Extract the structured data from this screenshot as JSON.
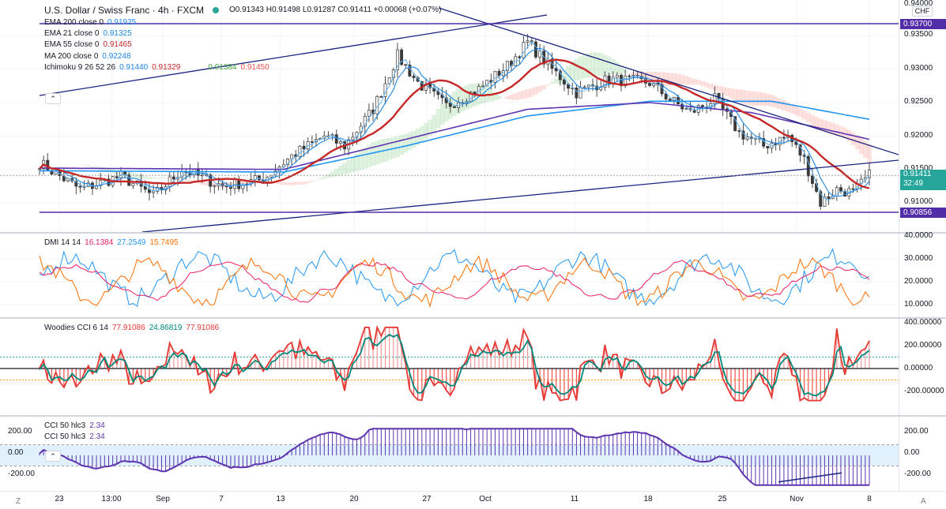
{
  "header": {
    "symbol": "U.S. Dollar / Swiss Franc · 4h · FXCM",
    "ohlc": "O0.91343  H0.91498  L0.91287  C0.91411  +0.00068 (+0.07%)",
    "currency": "CHF"
  },
  "main_legend": [
    {
      "label": "EMA 200 close 0",
      "value": "0.91925",
      "color": "#1e88e5"
    },
    {
      "label": "EMA 21 close 0",
      "value": "0.91325",
      "color": "#1e88e5"
    },
    {
      "label": "EMA 55 close 0",
      "value": "0.91465",
      "color": "#c62828"
    },
    {
      "label": "MA 200 close 0",
      "value": "0.92248",
      "color": "#1e88e5"
    }
  ],
  "ichimoku": {
    "label": "Ichimoku 9 26 52 26",
    "v1": "0.91440",
    "v2": "0.91329",
    "v3": "0.91384",
    "v4": "0.91450"
  },
  "dmi": {
    "label": "DMI 14 14",
    "v1": "16.1384",
    "v2": "27.2549",
    "v3": "15.7495"
  },
  "cci_w": {
    "label": "Woodies CCI 6 14",
    "v1": "77.91086",
    "v2": "24.86819",
    "v3": "77.91086"
  },
  "cci50": {
    "label1": "CCI 50 hlc3",
    "v1": "2.34",
    "label2": "CCI 50 hlc3",
    "v2": "2.34"
  },
  "price_axis": {
    "ticks": [
      "0.94000",
      "0.93500",
      "0.93000",
      "0.92500",
      "0.92000",
      "0.91500",
      "0.91000"
    ],
    "tag_top": "0.93700",
    "tag_last": "0.91411",
    "tag_countdown": "32:49",
    "tag_bottom": "0.90856"
  },
  "dmi_axis": [
    "40.0000",
    "30.0000",
    "20.0000",
    "10.0000"
  ],
  "cciw_axis": [
    "400.00000",
    "200.00000",
    "0.00000",
    "-200.00000"
  ],
  "cci50_axis_right": [
    "200.00",
    "0.00",
    "-200.00"
  ],
  "cci50_axis_left": [
    "200.00",
    "0.00",
    "-200.00"
  ],
  "x_labels": [
    "23",
    "13:00",
    "Sep",
    "7",
    "13",
    "20",
    "27",
    "Oct",
    "11",
    "18",
    "25",
    "Nov",
    "8"
  ],
  "corner": {
    "left": "Z",
    "right": "A"
  },
  "colors": {
    "up": "#26a69a",
    "down": "#ef5350",
    "ema55": "#c62828",
    "ema21": "#1e88e5",
    "ema200": "#1565c0",
    "ma200": "#2196f3",
    "purple": "#7b1fa2",
    "trend": "#1a237e"
  },
  "chart_data": [
    {
      "type": "line",
      "title": "U.S. Dollar / Swiss Franc · 4h · FXCM",
      "x": [
        "23",
        "13:00",
        "Sep",
        "7",
        "13",
        "20",
        "27",
        "Oct",
        "11",
        "18",
        "25",
        "Nov",
        "8"
      ],
      "ylim": [
        0.9075,
        0.94
      ],
      "series": [
        {
          "name": "EMA 55 close 0",
          "values": [
            0.915,
            0.9152,
            0.915,
            0.9152,
            0.9165,
            0.9215,
            0.9255,
            0.9285,
            0.928,
            0.9255,
            0.9215,
            0.9175,
            0.9147
          ]
        },
        {
          "name": "MA 200 close 0",
          "values": [
            0.9148,
            0.9148,
            0.9144,
            0.9146,
            0.9165,
            0.9188,
            0.9215,
            0.924,
            0.925,
            0.9253,
            0.9252,
            0.924,
            0.9225
          ]
        }
      ]
    },
    {
      "type": "line",
      "title": "DMI 14 14",
      "ylim": [
        5,
        40
      ]
    },
    {
      "type": "bar",
      "title": "Woodies CCI 6 14",
      "ylim": [
        -400,
        420
      ]
    },
    {
      "type": "area",
      "title": "CCI 50 hlc3",
      "ylim": [
        -300,
        260
      ]
    }
  ]
}
